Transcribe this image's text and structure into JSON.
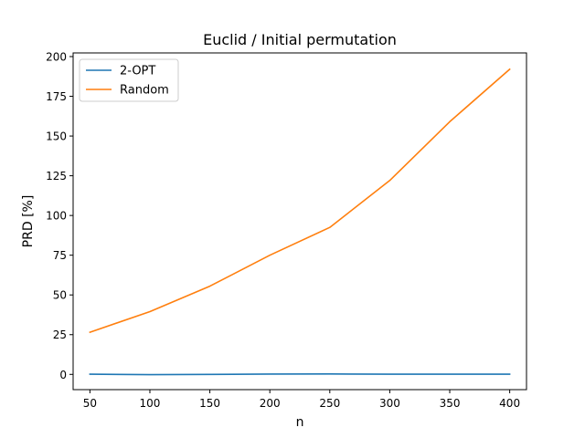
{
  "chart_data": {
    "type": "line",
    "title": "Euclid / Initial permutation",
    "xlabel": "n",
    "ylabel": "PRD [%]",
    "x": [
      50,
      100,
      150,
      200,
      250,
      300,
      350,
      400
    ],
    "xlim": [
      36,
      414
    ],
    "ylim": [
      -9.6,
      202.3
    ],
    "xticks": [
      50,
      100,
      150,
      200,
      250,
      300,
      350,
      400
    ],
    "yticks": [
      0,
      25,
      50,
      75,
      100,
      125,
      150,
      175,
      200
    ],
    "grid": false,
    "legend_position": "top-left",
    "series": [
      {
        "name": "2-OPT",
        "color": "#1f77b4",
        "values": [
          0.1,
          -0.2,
          0.0,
          0.2,
          0.3,
          0.1,
          0.1,
          0.1
        ]
      },
      {
        "name": "Random",
        "color": "#ff7f0e",
        "values": [
          26.5,
          39.5,
          55.5,
          75.0,
          92.5,
          122.0,
          159.0,
          192.0
        ]
      }
    ]
  }
}
